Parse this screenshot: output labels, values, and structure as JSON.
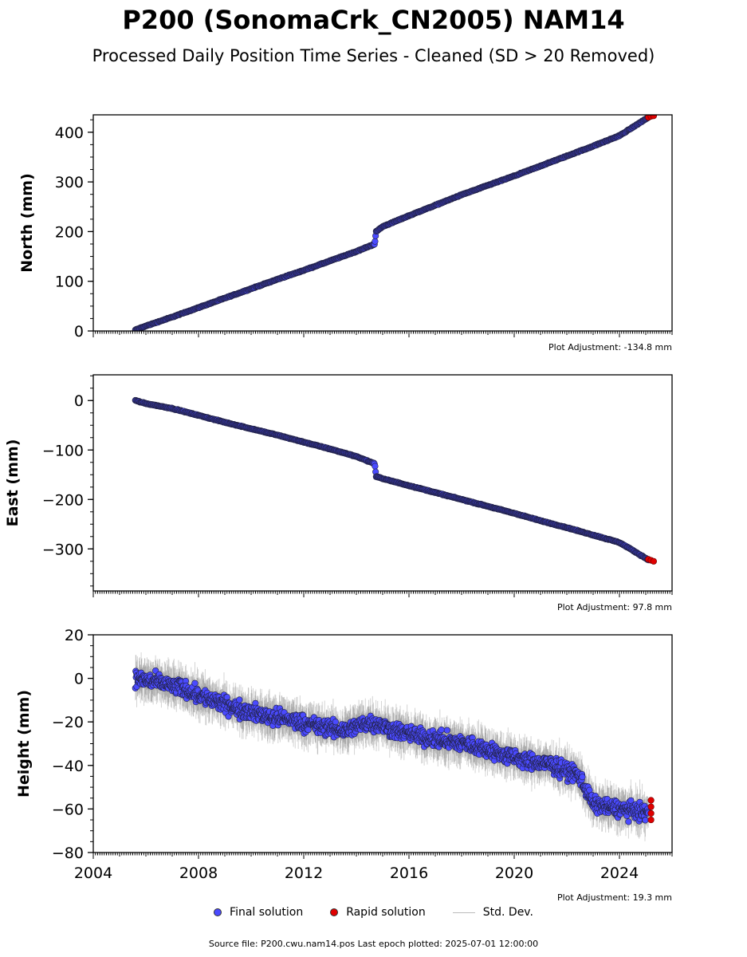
{
  "title": "P200 (SonomaCrk_CN2005) NAM14",
  "subtitle": "Processed Daily Position Time Series - Cleaned (SD > 20 Removed)",
  "colors": {
    "final": "#4a4aff",
    "rapid": "#e00000",
    "stddev": "#bbbbbb",
    "edge": "#222244"
  },
  "legend": {
    "final": "Final solution",
    "rapid": "Rapid solution",
    "stddev": "Std. Dev."
  },
  "footer": "Source file: P200.cwu.nam14.pos  Last epoch plotted: 2025-07-01 12:00:00",
  "chart_data": [
    {
      "type": "scatter",
      "ylabel": "North (mm)",
      "xlim": [
        2004,
        2026
      ],
      "ylim": [
        0,
        435
      ],
      "yticks": [
        0,
        100,
        200,
        300,
        400
      ],
      "xticks": [
        2004,
        2008,
        2012,
        2016,
        2020,
        2024
      ],
      "adjustment": "Plot Adjustment: -134.8 mm",
      "series": [
        {
          "kind": "final",
          "x": [
            2005.6,
            2006.0,
            2007.0,
            2008.0,
            2009.0,
            2010.0,
            2011.0,
            2012.0,
            2013.0,
            2014.0,
            2014.7,
            2014.75,
            2015.0,
            2016.0,
            2017.0,
            2018.0,
            2019.0,
            2020.0,
            2021.0,
            2022.0,
            2023.0,
            2024.0,
            2025.1
          ],
          "y": [
            2,
            10,
            28,
            47,
            66,
            85,
            104,
            122,
            141,
            160,
            175,
            200,
            210,
            232,
            253,
            274,
            293,
            312,
            332,
            352,
            372,
            393,
            430
          ]
        },
        {
          "kind": "rapid",
          "x": [
            2025.1,
            2025.2,
            2025.3
          ],
          "y": [
            430,
            432,
            433
          ]
        }
      ]
    },
    {
      "type": "scatter",
      "ylabel": "East (mm)",
      "xlim": [
        2004,
        2026
      ],
      "ylim": [
        -385,
        52
      ],
      "yticks": [
        0,
        -100,
        -200,
        -300
      ],
      "xticks": [
        2004,
        2008,
        2012,
        2016,
        2020,
        2024
      ],
      "adjustment": "Plot Adjustment: 97.8 mm",
      "series": [
        {
          "kind": "final",
          "x": [
            2005.6,
            2006.0,
            2007.0,
            2008.0,
            2009.0,
            2010.0,
            2011.0,
            2012.0,
            2013.0,
            2014.0,
            2014.7,
            2014.75,
            2015.0,
            2016.0,
            2017.0,
            2018.0,
            2019.0,
            2020.0,
            2021.0,
            2022.0,
            2023.0,
            2024.0,
            2025.1
          ],
          "y": [
            0,
            -6,
            -16,
            -30,
            -44,
            -57,
            -70,
            -84,
            -98,
            -113,
            -128,
            -153,
            -158,
            -172,
            -186,
            -200,
            -214,
            -228,
            -243,
            -257,
            -272,
            -287,
            -322
          ]
        },
        {
          "kind": "rapid",
          "x": [
            2025.1,
            2025.2,
            2025.3
          ],
          "y": [
            -321,
            -323,
            -325
          ]
        }
      ]
    },
    {
      "type": "scatter",
      "ylabel": "Height (mm)",
      "xlim": [
        2004,
        2026
      ],
      "ylim": [
        -80,
        20
      ],
      "yticks": [
        20,
        0,
        -20,
        -40,
        -60,
        -80
      ],
      "xticks": [
        2004,
        2008,
        2012,
        2016,
        2020,
        2024
      ],
      "adjustment": "Plot Adjustment: 19.3 mm",
      "series": [
        {
          "kind": "final",
          "x": [
            2005.6,
            2006.5,
            2007.5,
            2008.5,
            2009.5,
            2010.5,
            2011.5,
            2012.5,
            2013.5,
            2014.5,
            2015.5,
            2016.5,
            2017.5,
            2018.5,
            2019.5,
            2020.5,
            2021.5,
            2022.5,
            2023.0,
            2024.0,
            2025.1
          ],
          "y": [
            0,
            -2,
            -5,
            -10,
            -14,
            -17,
            -19,
            -22,
            -24,
            -20,
            -24,
            -27,
            -29,
            -31,
            -35,
            -38,
            -40,
            -45,
            -58,
            -60,
            -62
          ]
        },
        {
          "kind": "rapid",
          "x": [
            2025.2,
            2025.2,
            2025.2,
            2025.2
          ],
          "y": [
            -56,
            -59,
            -62,
            -65
          ]
        }
      ]
    }
  ]
}
